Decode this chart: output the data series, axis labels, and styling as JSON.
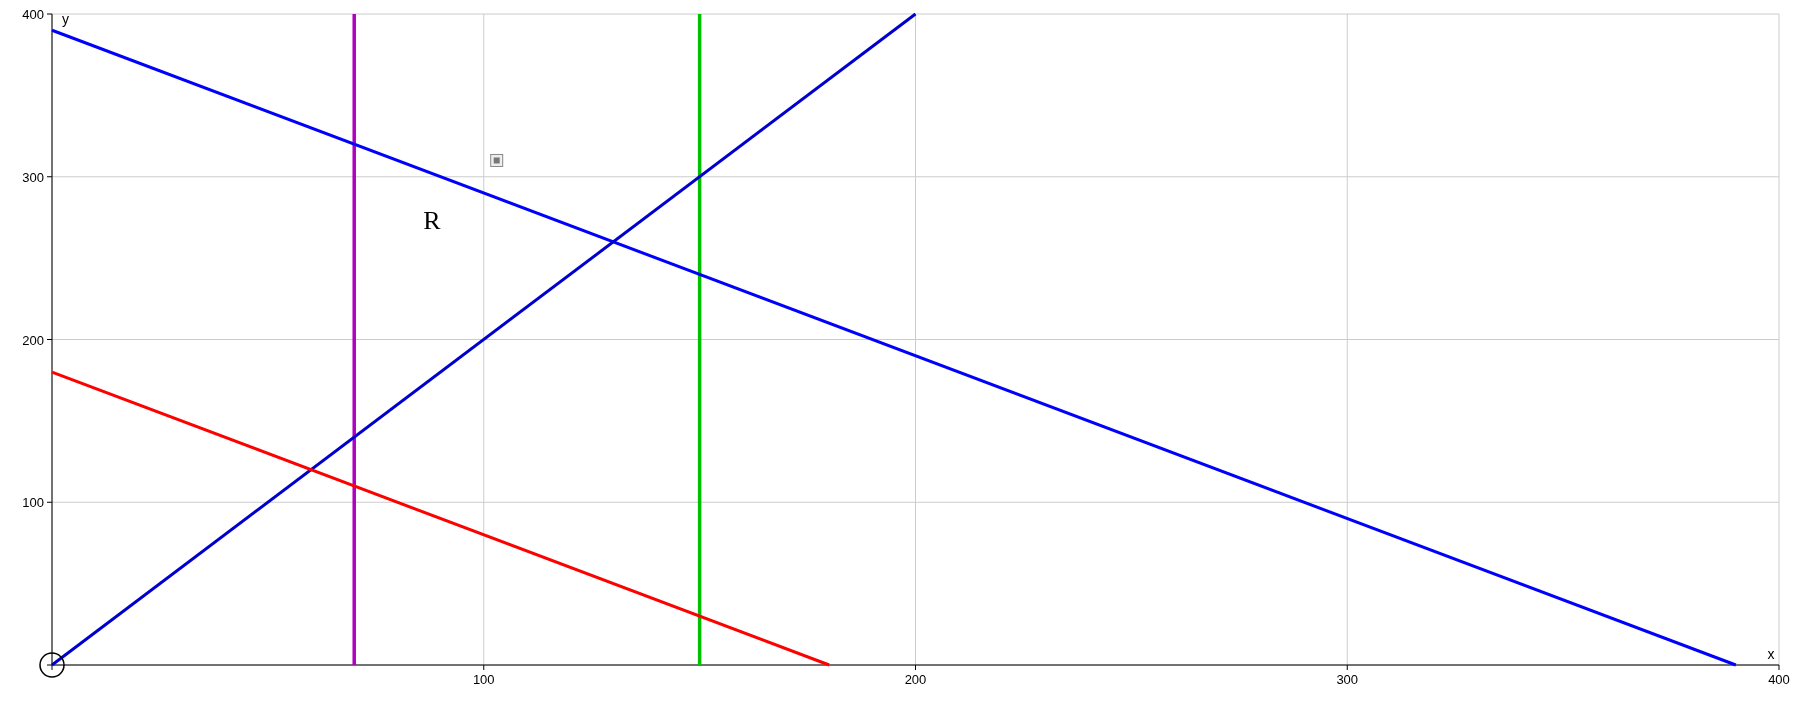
{
  "chart_data": {
    "type": "line",
    "xlabel": "x",
    "ylabel": "y",
    "xlim": [
      0,
      400
    ],
    "ylim": [
      0,
      400
    ],
    "xticks": [
      {
        "value": 0,
        "label": null
      },
      100,
      200,
      300,
      400
    ],
    "yticks": [
      {
        "value": 0,
        "label": null
      },
      100,
      200,
      300,
      400
    ],
    "grid": true,
    "line_style": "solid",
    "series": [
      {
        "color": "#0000ff",
        "x": [
          0,
          390
        ],
        "values": [
          390,
          0
        ]
      },
      {
        "color": "#0000cc",
        "x": [
          0,
          200
        ],
        "values": [
          0,
          400
        ]
      },
      {
        "color": "#ff0000",
        "x": [
          0,
          180
        ],
        "values": [
          180,
          0
        ]
      }
    ],
    "ref_lines": [
      {
        "axis": "x",
        "value": 70,
        "color": "#b000c0"
      },
      {
        "axis": "x",
        "value": 150,
        "color": "#00c000"
      }
    ],
    "annotations": [
      "R"
    ]
  }
}
